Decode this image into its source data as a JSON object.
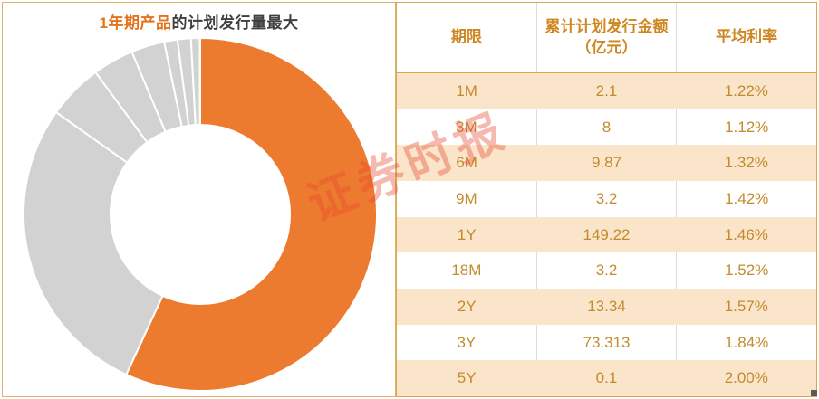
{
  "title": {
    "highlight": "1年期产品",
    "rest": "的计划发行量最大"
  },
  "watermark": "证券时报",
  "table": {
    "headers": [
      "期限",
      "累计计划发行金额\n（亿元）",
      "平均利率"
    ],
    "rows": [
      [
        "1M",
        "2.1",
        "1.22%"
      ],
      [
        "3M",
        "8",
        "1.12%"
      ],
      [
        "6M",
        "9.87",
        "1.32%"
      ],
      [
        "9M",
        "3.2",
        "1.42%"
      ],
      [
        "1Y",
        "149.22",
        "1.46%"
      ],
      [
        "18M",
        "3.2",
        "1.52%"
      ],
      [
        "2Y",
        "13.34",
        "1.57%"
      ],
      [
        "3Y",
        "73.313",
        "1.84%"
      ],
      [
        "5Y",
        "0.1",
        "2.00%"
      ]
    ]
  },
  "chart_data": {
    "type": "pie",
    "subtype": "donut",
    "title": "1年期产品的计划发行量最大",
    "categories": [
      "1M",
      "3M",
      "6M",
      "9M",
      "1Y",
      "18M",
      "2Y",
      "3Y",
      "5Y"
    ],
    "values": [
      2.1,
      8,
      9.87,
      3.2,
      149.22,
      3.2,
      13.34,
      73.313,
      0.1
    ],
    "values_unit": "亿元",
    "highlight_category": "1Y",
    "colors": {
      "highlight": "#ED7B2F",
      "other": "#D2D2D2",
      "separator": "#FFFFFF"
    },
    "start_angle_deg": 0,
    "direction": "clockwise",
    "sort": "descending",
    "inner_radius_ratio": 0.51,
    "legend": "none"
  }
}
